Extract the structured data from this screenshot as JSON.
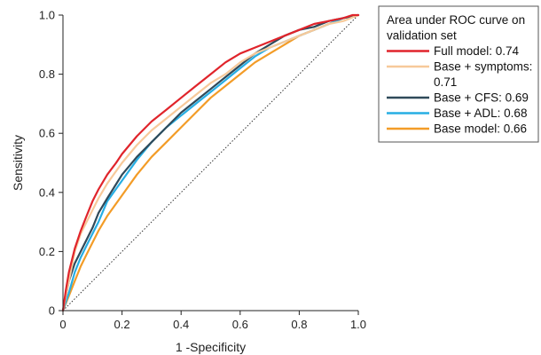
{
  "chart_data": {
    "type": "line",
    "xlabel": "1 -Specificity",
    "ylabel": "Sensitivity",
    "xlim": [
      0,
      1
    ],
    "ylim": [
      0,
      1
    ],
    "xticks": [
      "0",
      "0.2",
      "0.4",
      "0.6",
      "0.8",
      "1.0"
    ],
    "yticks": [
      "0",
      "0.2",
      "0.4",
      "0.6",
      "0.8",
      "1.0"
    ],
    "grid": false,
    "legend": {
      "placement": "top-right, outside plot",
      "title_lines": [
        "Area under ROC curve on",
        "validation set"
      ]
    },
    "diagonal_reference": true,
    "series": [
      {
        "name": "Full model: 0.74",
        "label_lines": [
          "Full model: 0.74"
        ],
        "color": "#e0242b",
        "x": [
          0,
          0.01,
          0.02,
          0.04,
          0.06,
          0.08,
          0.1,
          0.12,
          0.15,
          0.18,
          0.2,
          0.25,
          0.3,
          0.35,
          0.4,
          0.45,
          0.5,
          0.55,
          0.6,
          0.65,
          0.7,
          0.75,
          0.8,
          0.85,
          0.9,
          0.95,
          0.98,
          1.0
        ],
        "y": [
          0,
          0.07,
          0.13,
          0.21,
          0.27,
          0.32,
          0.37,
          0.41,
          0.46,
          0.5,
          0.53,
          0.59,
          0.64,
          0.68,
          0.72,
          0.76,
          0.8,
          0.84,
          0.87,
          0.89,
          0.91,
          0.93,
          0.95,
          0.97,
          0.98,
          0.99,
          1.0,
          1.0
        ]
      },
      {
        "name": "Base + symptoms: 0.71",
        "label_lines": [
          "Base + symptoms:",
          "0.71"
        ],
        "color": "#f7c99a",
        "x": [
          0,
          0.02,
          0.04,
          0.06,
          0.08,
          0.1,
          0.12,
          0.15,
          0.2,
          0.25,
          0.3,
          0.35,
          0.4,
          0.45,
          0.5,
          0.55,
          0.6,
          0.65,
          0.7,
          0.75,
          0.8,
          0.85,
          0.9,
          0.95,
          1.0
        ],
        "y": [
          0,
          0.1,
          0.2,
          0.26,
          0.3,
          0.34,
          0.38,
          0.43,
          0.5,
          0.56,
          0.61,
          0.65,
          0.69,
          0.73,
          0.77,
          0.8,
          0.84,
          0.87,
          0.89,
          0.91,
          0.93,
          0.95,
          0.97,
          0.98,
          1.0
        ]
      },
      {
        "name": "Base + CFS: 0.69",
        "label_lines": [
          "Base + CFS: 0.69"
        ],
        "color": "#2f4a5a",
        "x": [
          0,
          0.02,
          0.04,
          0.06,
          0.08,
          0.1,
          0.12,
          0.15,
          0.2,
          0.25,
          0.3,
          0.35,
          0.4,
          0.45,
          0.5,
          0.55,
          0.6,
          0.65,
          0.7,
          0.75,
          0.8,
          0.85,
          0.9,
          0.95,
          1.0
        ],
        "y": [
          0,
          0.1,
          0.16,
          0.2,
          0.24,
          0.28,
          0.33,
          0.38,
          0.46,
          0.52,
          0.57,
          0.62,
          0.67,
          0.71,
          0.75,
          0.79,
          0.83,
          0.87,
          0.9,
          0.93,
          0.95,
          0.96,
          0.98,
          0.99,
          1.0
        ]
      },
      {
        "name": "Base + ADL: 0.68",
        "label_lines": [
          "Base + ADL: 0.68"
        ],
        "color": "#27aee3",
        "x": [
          0,
          0.02,
          0.04,
          0.06,
          0.08,
          0.1,
          0.12,
          0.15,
          0.2,
          0.25,
          0.3,
          0.35,
          0.4,
          0.45,
          0.5,
          0.55,
          0.6,
          0.65,
          0.7,
          0.75,
          0.8,
          0.85,
          0.9,
          0.95,
          1.0
        ],
        "y": [
          0,
          0.06,
          0.13,
          0.18,
          0.22,
          0.26,
          0.3,
          0.37,
          0.44,
          0.51,
          0.57,
          0.62,
          0.66,
          0.7,
          0.74,
          0.78,
          0.82,
          0.86,
          0.89,
          0.91,
          0.93,
          0.95,
          0.97,
          0.99,
          1.0
        ]
      },
      {
        "name": "Base model: 0.66",
        "label_lines": [
          "Base model: 0.66"
        ],
        "color": "#f39c27",
        "x": [
          0,
          0.02,
          0.04,
          0.06,
          0.08,
          0.1,
          0.12,
          0.15,
          0.2,
          0.25,
          0.3,
          0.35,
          0.4,
          0.45,
          0.5,
          0.55,
          0.6,
          0.65,
          0.7,
          0.75,
          0.8,
          0.85,
          0.9,
          0.95,
          1.0
        ],
        "y": [
          0,
          0.05,
          0.1,
          0.15,
          0.19,
          0.23,
          0.27,
          0.32,
          0.39,
          0.46,
          0.52,
          0.57,
          0.62,
          0.67,
          0.72,
          0.76,
          0.8,
          0.84,
          0.87,
          0.9,
          0.93,
          0.95,
          0.97,
          0.99,
          1.0
        ]
      }
    ]
  }
}
